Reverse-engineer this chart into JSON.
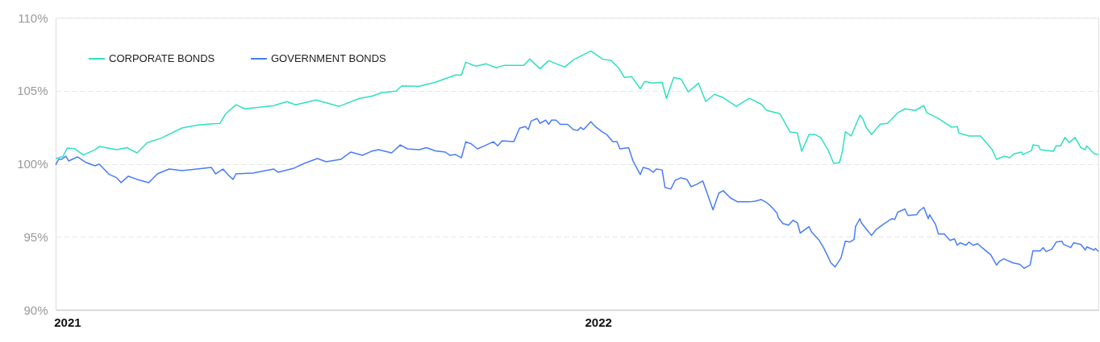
{
  "chart_data": {
    "type": "line",
    "xlim": [
      "2021-01-01",
      "2022-12-19"
    ],
    "xticks": [
      {
        "value": "2021-01-09",
        "label": "2021"
      },
      {
        "value": "2022-01-09",
        "label": "2022"
      }
    ],
    "ylim": [
      90,
      110
    ],
    "yticks": [
      {
        "value": 90,
        "label": "90%"
      },
      {
        "value": 95,
        "label": "95%"
      },
      {
        "value": 100,
        "label": "100%"
      },
      {
        "value": 105,
        "label": "105%"
      },
      {
        "value": 110,
        "label": "110%"
      }
    ],
    "grid": "y",
    "legend": "top left",
    "line_style": "solid",
    "series": [
      {
        "name": "CORPORATE BONDS",
        "color": "#2ee0c0",
        "x": [
          "2021-01-01",
          "2021-01-06",
          "2021-01-09",
          "2021-01-14",
          "2021-01-20",
          "2021-01-28",
          "2021-01-31",
          "2021-02-12",
          "2021-02-19",
          "2021-02-26",
          "2021-03-05",
          "2021-03-14",
          "2021-03-29",
          "2021-04-09",
          "2021-04-24",
          "2021-04-28",
          "2021-05-05",
          "2021-05-11",
          "2021-05-31",
          "2021-06-09",
          "2021-06-15",
          "2021-06-29",
          "2021-07-15",
          "2021-07-29",
          "2021-08-07",
          "2021-08-13",
          "2021-08-23",
          "2021-08-27",
          "2021-09-08",
          "2021-09-19",
          "2021-10-03",
          "2021-10-07",
          "2021-10-10",
          "2021-10-17",
          "2021-10-24",
          "2021-10-31",
          "2021-11-05",
          "2021-11-19",
          "2021-11-23",
          "2021-11-30",
          "2021-12-06",
          "2021-12-17",
          "2021-12-23",
          "2022-01-04",
          "2022-01-12",
          "2022-01-18",
          "2022-01-23",
          "2022-01-27",
          "2022-02-01",
          "2022-02-07",
          "2022-02-10",
          "2022-02-16",
          "2022-02-22",
          "2022-02-25",
          "2022-03-02",
          "2022-03-07",
          "2022-03-12",
          "2022-03-19",
          "2022-03-24",
          "2022-03-30",
          "2022-04-05",
          "2022-04-14",
          "2022-04-23",
          "2022-05-01",
          "2022-05-05",
          "2022-05-14",
          "2022-05-21",
          "2022-05-26",
          "2022-05-29",
          "2022-06-03",
          "2022-06-07",
          "2022-06-11",
          "2022-06-16",
          "2022-06-20",
          "2022-06-24",
          "2022-06-26",
          "2022-06-28",
          "2022-07-02",
          "2022-07-08",
          "2022-07-10",
          "2022-07-12",
          "2022-07-16",
          "2022-07-22",
          "2022-07-27",
          "2022-08-03",
          "2022-08-08",
          "2022-08-15",
          "2022-08-21",
          "2022-08-23",
          "2022-08-30",
          "2022-09-05",
          "2022-09-09",
          "2022-09-13",
          "2022-09-14",
          "2022-09-21",
          "2022-09-29",
          "2022-10-07",
          "2022-10-10",
          "2022-10-15",
          "2022-10-19",
          "2022-10-22",
          "2022-10-27",
          "2022-10-28",
          "2022-11-03",
          "2022-11-04",
          "2022-11-08",
          "2022-11-09",
          "2022-11-18",
          "2022-11-20",
          "2022-11-23",
          "2022-11-26",
          "2022-11-29",
          "2022-12-03",
          "2022-12-07",
          "2022-12-10",
          "2022-12-11",
          "2022-12-16",
          "2022-12-19"
        ],
        "values": [
          100.34,
          100.5,
          101.07,
          101.04,
          100.6,
          100.96,
          101.18,
          100.96,
          101.1,
          100.74,
          101.45,
          101.73,
          102.45,
          102.66,
          102.77,
          103.43,
          104.04,
          103.76,
          103.98,
          104.26,
          104.04,
          104.37,
          103.93,
          104.48,
          104.64,
          104.86,
          104.97,
          105.33,
          105.3,
          105.58,
          106.07,
          106.07,
          106.95,
          106.68,
          106.84,
          106.57,
          106.73,
          106.73,
          107.17,
          106.51,
          107.06,
          106.62,
          107.11,
          107.72,
          107.17,
          107.06,
          106.57,
          105.91,
          105.97,
          105.14,
          105.63,
          105.52,
          105.58,
          104.48,
          105.91,
          105.8,
          104.92,
          105.52,
          104.26,
          104.75,
          104.53,
          103.93,
          104.48,
          104.09,
          103.65,
          103.43,
          102.17,
          102.11,
          100.85,
          102.0,
          102.0,
          101.8,
          100.96,
          100.03,
          100.08,
          100.85,
          102.2,
          101.9,
          103.32,
          103.1,
          102.55,
          102.0,
          102.72,
          102.77,
          103.49,
          103.76,
          103.65,
          103.98,
          103.49,
          103.16,
          102.77,
          102.5,
          102.55,
          102.11,
          101.9,
          101.9,
          100.96,
          100.3,
          100.52,
          100.41,
          100.68,
          100.8,
          100.63,
          100.9,
          101.29,
          101.23,
          100.96,
          100.85,
          101.23,
          101.23,
          101.8,
          101.45,
          101.8,
          101.1,
          100.96,
          101.23,
          100.69,
          100.63
        ]
      },
      {
        "name": "GOVERNMENT BONDS",
        "color": "#4a7cf7",
        "x": [
          "2021-01-01",
          "2021-01-03",
          "2021-01-05",
          "2021-01-08",
          "2021-01-10",
          "2021-01-16",
          "2021-01-22",
          "2021-01-28",
          "2021-01-31",
          "2021-02-07",
          "2021-02-12",
          "2021-02-15",
          "2021-02-20",
          "2021-02-26",
          "2021-03-06",
          "2021-03-12",
          "2021-03-20",
          "2021-03-29",
          "2021-04-18",
          "2021-04-21",
          "2021-04-26",
          "2021-04-30",
          "2021-05-03",
          "2021-05-05",
          "2021-05-17",
          "2021-05-31",
          "2021-06-03",
          "2021-06-14",
          "2021-06-21",
          "2021-06-30",
          "2021-07-06",
          "2021-07-16",
          "2021-07-23",
          "2021-07-31",
          "2021-08-06",
          "2021-08-11",
          "2021-08-20",
          "2021-08-26",
          "2021-08-31",
          "2021-09-08",
          "2021-09-13",
          "2021-09-19",
          "2021-09-26",
          "2021-09-29",
          "2021-10-03",
          "2021-10-07",
          "2021-10-10",
          "2021-10-14",
          "2021-10-18",
          "2021-10-23",
          "2021-10-29",
          "2021-11-01",
          "2021-11-04",
          "2021-11-12",
          "2021-11-16",
          "2021-11-20",
          "2021-11-22",
          "2021-11-24",
          "2021-11-28",
          "2021-11-30",
          "2021-12-04",
          "2021-12-06",
          "2021-12-08",
          "2021-12-11",
          "2021-12-14",
          "2021-12-19",
          "2021-12-23",
          "2021-12-26",
          "2021-12-28",
          "2021-12-30",
          "2022-01-04",
          "2022-01-07",
          "2022-01-12",
          "2022-01-15",
          "2022-01-19",
          "2022-01-22",
          "2022-01-24",
          "2022-01-30",
          "2022-02-02",
          "2022-02-07",
          "2022-02-09",
          "2022-02-13",
          "2022-02-16",
          "2022-02-18",
          "2022-02-22",
          "2022-02-24",
          "2022-02-28",
          "2022-03-03",
          "2022-03-07",
          "2022-03-11",
          "2022-03-14",
          "2022-03-18",
          "2022-03-22",
          "2022-03-25",
          "2022-03-29",
          "2022-04-02",
          "2022-04-05",
          "2022-04-10",
          "2022-04-15",
          "2022-04-23",
          "2022-04-27",
          "2022-05-01",
          "2022-05-05",
          "2022-05-07",
          "2022-05-12",
          "2022-05-13",
          "2022-05-16",
          "2022-05-20",
          "2022-05-23",
          "2022-05-26",
          "2022-05-28",
          "2022-06-03",
          "2022-06-05",
          "2022-06-10",
          "2022-06-13",
          "2022-06-16",
          "2022-06-18",
          "2022-06-21",
          "2022-06-25",
          "2022-06-28",
          "2022-07-01",
          "2022-07-04",
          "2022-07-05",
          "2022-07-08",
          "2022-07-09",
          "2022-07-12",
          "2022-07-16",
          "2022-07-19",
          "2022-07-24",
          "2022-07-30",
          "2022-08-01",
          "2022-08-03",
          "2022-08-08",
          "2022-08-10",
          "2022-08-16",
          "2022-08-18",
          "2022-08-21",
          "2022-08-24",
          "2022-08-25",
          "2022-08-29",
          "2022-08-31",
          "2022-09-04",
          "2022-09-08",
          "2022-09-11",
          "2022-09-13",
          "2022-09-15",
          "2022-09-19",
          "2022-09-21",
          "2022-09-24",
          "2022-09-27",
          "2022-09-30",
          "2022-10-06",
          "2022-10-10",
          "2022-10-12",
          "2022-10-15",
          "2022-10-21",
          "2022-10-26",
          "2022-10-29",
          "2022-11-02",
          "2022-11-04",
          "2022-11-09",
          "2022-11-11",
          "2022-11-13",
          "2022-11-17",
          "2022-11-20",
          "2022-11-24",
          "2022-11-25",
          "2022-11-30",
          "2022-12-02",
          "2022-12-07",
          "2022-12-10",
          "2022-12-11",
          "2022-12-16",
          "2022-12-17",
          "2022-12-19"
        ],
        "values": [
          99.92,
          100.3,
          100.3,
          100.52,
          100.19,
          100.47,
          100.08,
          99.86,
          99.97,
          99.26,
          99.04,
          98.71,
          99.15,
          98.93,
          98.71,
          99.31,
          99.64,
          99.53,
          99.75,
          99.31,
          99.64,
          99.2,
          98.93,
          99.31,
          99.37,
          99.64,
          99.42,
          99.7,
          100.03,
          100.36,
          100.14,
          100.3,
          100.8,
          100.58,
          100.85,
          100.96,
          100.74,
          101.29,
          101.02,
          100.96,
          101.1,
          100.88,
          100.8,
          100.58,
          100.63,
          100.41,
          101.51,
          101.35,
          101.02,
          101.23,
          101.51,
          101.23,
          101.57,
          101.51,
          102.44,
          102.55,
          102.34,
          102.93,
          103.1,
          102.77,
          102.99,
          102.7,
          102.99,
          102.99,
          102.7,
          102.7,
          102.34,
          102.28,
          102.49,
          102.34,
          102.88,
          102.55,
          102.17,
          102.0,
          101.51,
          101.51,
          101.02,
          101.1,
          100.19,
          99.26,
          99.75,
          99.64,
          99.42,
          99.64,
          99.58,
          98.38,
          98.27,
          98.87,
          99.04,
          98.93,
          98.43,
          98.6,
          98.82,
          97.99,
          96.84,
          97.99,
          98.16,
          97.66,
          97.39,
          97.39,
          97.44,
          97.55,
          97.33,
          97.17,
          96.62,
          96.29,
          95.91,
          95.8,
          96.13,
          95.96,
          95.25,
          95.69,
          95.3,
          94.76,
          94.26,
          93.66,
          93.22,
          92.94,
          93.55,
          94.7,
          94.64,
          94.81,
          95.69,
          96.24,
          95.96,
          95.58,
          95.09,
          95.47,
          95.85,
          96.24,
          96.18,
          96.68,
          96.9,
          96.46,
          96.51,
          96.79,
          97.01,
          96.24,
          96.51,
          95.85,
          95.19,
          95.19,
          94.75,
          94.86,
          94.42,
          94.59,
          94.42,
          94.64,
          94.42,
          94.53,
          94.26,
          93.77,
          93.06,
          93.33,
          93.49,
          93.22,
          93.11,
          92.84,
          93.06,
          94.04,
          94.04,
          94.26,
          93.99,
          94.15,
          94.64,
          94.7,
          94.48,
          94.26,
          94.59,
          94.48,
          94.09,
          94.31,
          94.09,
          94.2,
          93.99
        ]
      }
    ]
  }
}
